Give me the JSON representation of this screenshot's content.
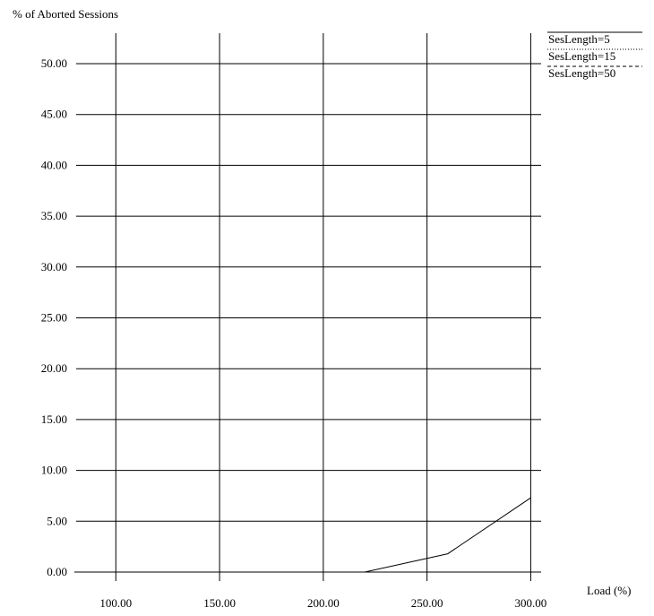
{
  "chart_data": {
    "type": "line",
    "title": "",
    "ylabel": "% of Aborted Sessions",
    "xlabel": "Load (%)",
    "xlim": [
      80,
      305
    ],
    "ylim": [
      0,
      53
    ],
    "x_ticks": [
      100,
      150,
      200,
      250,
      300
    ],
    "x_tick_labels": [
      "100.00",
      "150.00",
      "200.00",
      "250.00",
      "300.00"
    ],
    "y_ticks": [
      0,
      5,
      10,
      15,
      20,
      25,
      30,
      35,
      40,
      45,
      50
    ],
    "y_tick_labels": [
      "0.00",
      "5.00",
      "10.00",
      "15.00",
      "20.00",
      "25.00",
      "30.00",
      "35.00",
      "40.00",
      "45.00",
      "50.00"
    ],
    "grid": true,
    "legend_position": "top-right",
    "series": [
      {
        "name": "SesLength=5",
        "line_style": "solid",
        "x": [
          80,
          100,
          150,
          200,
          220,
          260,
          300
        ],
        "y": [
          0,
          0,
          0,
          0,
          0,
          1.8,
          7.3
        ]
      },
      {
        "name": "SesLength=15",
        "line_style": "dotted",
        "x": [
          80,
          100,
          150,
          200,
          250,
          300
        ],
        "y": [
          0,
          0,
          0,
          0,
          0,
          0
        ]
      },
      {
        "name": "SesLength=50",
        "line_style": "dashed",
        "x": [
          80,
          100,
          150,
          200,
          250,
          300
        ],
        "y": [
          0,
          0,
          0,
          0,
          0,
          0
        ]
      }
    ]
  }
}
